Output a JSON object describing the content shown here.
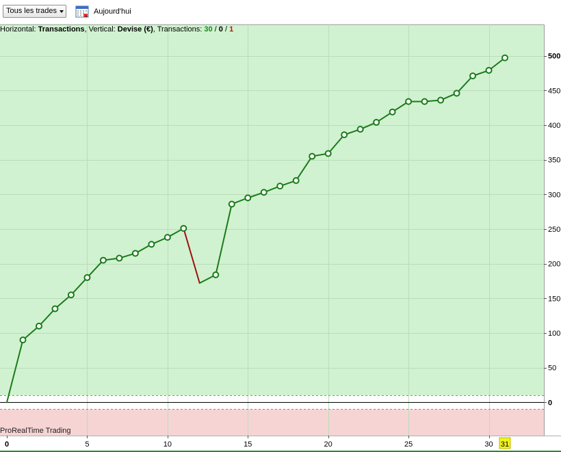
{
  "toolbar": {
    "trades_filter": "Tous les trades",
    "calendar_icon": "calendar-icon",
    "today_label": "Aujourd'hui"
  },
  "info": {
    "horizontal_prefix": "Horizontal: ",
    "horizontal_value": "Transactions",
    "vertical_prefix": ", Vertical: ",
    "vertical_value": "Devise (€)",
    "transactions_prefix": ", Transactions: ",
    "count_positive": "30",
    "separator": " / ",
    "count_zero": "0",
    "count_negative": "1"
  },
  "brand": "ProRealTime Trading",
  "colors": {
    "positive_zone": "#d0f2d0",
    "negative_zone": "#f6d4d4",
    "gain_line": "#1a7a1a",
    "loss_line": "#a01010",
    "current_marker": "#f2f21e"
  },
  "chart_data": {
    "type": "line",
    "x": [
      0,
      1,
      2,
      3,
      4,
      5,
      6,
      7,
      8,
      9,
      10,
      11,
      12,
      13,
      14,
      15,
      16,
      17,
      18,
      19,
      20,
      21,
      22,
      23,
      24,
      25,
      26,
      27,
      28,
      29,
      30,
      31
    ],
    "series": [
      {
        "values": [
          0,
          90,
          110,
          135,
          155,
          180,
          205,
          208,
          215,
          228,
          238,
          251,
          172,
          184,
          286,
          295,
          303,
          312,
          320,
          355,
          359,
          386,
          394,
          404,
          419,
          434,
          434,
          436,
          446,
          471,
          479,
          497
        ]
      }
    ],
    "xlim": [
      0,
      33
    ],
    "ylim": [
      -48,
      545
    ],
    "x_ticks": [
      0,
      5,
      10,
      15,
      20,
      25,
      30
    ],
    "y_ticks": [
      0,
      50,
      100,
      150,
      200,
      250,
      300,
      350,
      400,
      450,
      500
    ],
    "current_x": 31,
    "grid": true
  }
}
